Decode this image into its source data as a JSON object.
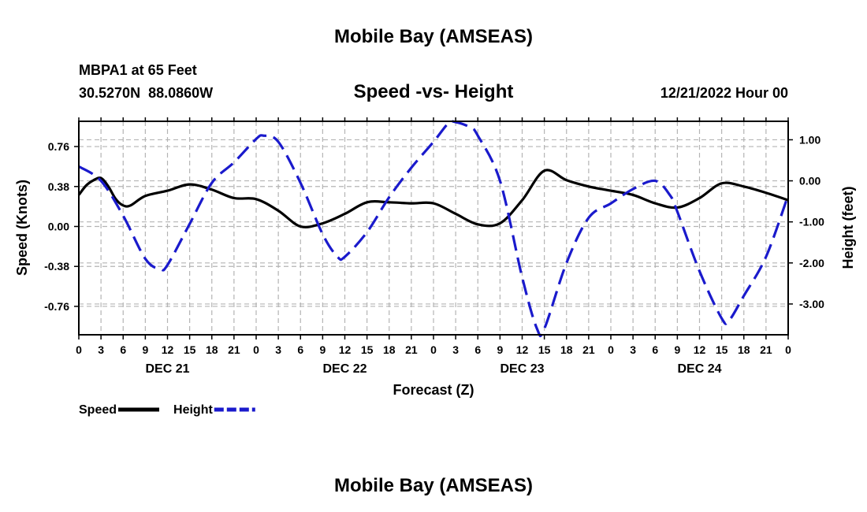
{
  "header": {
    "title": "Mobile Bay (AMSEAS)",
    "station": "MBPA1 at 65 Feet",
    "coords": "30.5270N  88.0860W",
    "subtitle": "Speed -vs- Height",
    "timestamp": "12/21/2022 Hour 00"
  },
  "legend": {
    "items": [
      {
        "label": "Speed",
        "color": "#000000",
        "dash": "solid"
      },
      {
        "label": "Height",
        "color": "#1a1acc",
        "dash": "dashed"
      }
    ]
  },
  "footer": {
    "title": "Mobile Bay (AMSEAS)"
  },
  "chart_data": {
    "type": "line",
    "title": "Speed -vs- Height",
    "xlabel": "Forecast (Z)",
    "ylabel": "Speed (Knots)",
    "y2label": "Height (feet)",
    "x_tick_labels": [
      "0",
      "3",
      "6",
      "9",
      "12",
      "15",
      "18",
      "21",
      "0",
      "3",
      "6",
      "9",
      "12",
      "15",
      "18",
      "21",
      "0",
      "3",
      "6",
      "9",
      "12",
      "15",
      "18",
      "21",
      "0",
      "3",
      "6",
      "9",
      "12",
      "15",
      "18",
      "21",
      "0"
    ],
    "day_labels": [
      {
        "label": "DEC 21",
        "hour": 12
      },
      {
        "label": "DEC 22",
        "hour": 36
      },
      {
        "label": "DEC 23",
        "hour": 60
      },
      {
        "label": "DEC 24",
        "hour": 84
      }
    ],
    "xlim": [
      0,
      96
    ],
    "ylim": [
      -1.03,
      1.0
    ],
    "y2lim": [
      -3.75,
      1.45
    ],
    "yticks": [
      "0.76",
      "0.38",
      "0.00",
      "-0.38",
      "-0.76"
    ],
    "yticks_values": [
      0.76,
      0.38,
      0.0,
      -0.38,
      -0.76
    ],
    "y2ticks": [
      "1.00",
      "0.00",
      "-1.00",
      "-2.00",
      "-3.00"
    ],
    "y2ticks_values": [
      1.0,
      0.0,
      -1.0,
      -2.0,
      -3.0
    ],
    "grid": true,
    "legend_position": "bottom-left",
    "series": [
      {
        "name": "Speed",
        "axis": "left",
        "color": "#000000",
        "style": "solid",
        "x": [
          0,
          1,
          2,
          3,
          4,
          5,
          6,
          7,
          9,
          12,
          15,
          18,
          21,
          24,
          27,
          30,
          33,
          36,
          39,
          42,
          45,
          48,
          51,
          54,
          57,
          60,
          63,
          66,
          69,
          72,
          75,
          78,
          81,
          84,
          87,
          90,
          93,
          96
        ],
        "values": [
          0.3,
          0.39,
          0.44,
          0.46,
          0.38,
          0.26,
          0.2,
          0.2,
          0.29,
          0.34,
          0.4,
          0.35,
          0.27,
          0.26,
          0.15,
          0.0,
          0.03,
          0.12,
          0.23,
          0.23,
          0.22,
          0.22,
          0.12,
          0.02,
          0.03,
          0.25,
          0.53,
          0.44,
          0.38,
          0.34,
          0.3,
          0.22,
          0.18,
          0.27,
          0.41,
          0.38,
          0.32,
          0.25
        ]
      },
      {
        "name": "Height",
        "axis": "right",
        "color": "#1a1acc",
        "style": "dashed",
        "x": [
          0,
          3,
          6,
          9,
          11,
          12,
          15,
          18,
          21,
          24,
          25,
          27,
          30,
          33,
          35,
          36,
          39,
          42,
          45,
          48,
          50,
          51,
          53,
          54,
          57,
          60,
          62,
          63,
          66,
          69,
          72,
          75,
          78,
          80,
          81,
          84,
          87,
          88,
          90,
          93,
          96
        ],
        "values": [
          0.35,
          0.0,
          -0.85,
          -1.9,
          -2.15,
          -2.05,
          -1.05,
          -0.05,
          0.45,
          1.02,
          1.1,
          0.95,
          -0.05,
          -1.3,
          -1.85,
          -1.85,
          -1.25,
          -0.4,
          0.32,
          0.95,
          1.4,
          1.43,
          1.3,
          1.1,
          0.0,
          -2.35,
          -3.6,
          -3.6,
          -2.0,
          -0.9,
          -0.55,
          -0.2,
          0.0,
          -0.35,
          -0.75,
          -2.2,
          -3.35,
          -3.4,
          -2.8,
          -1.85,
          -0.35
        ]
      }
    ]
  }
}
